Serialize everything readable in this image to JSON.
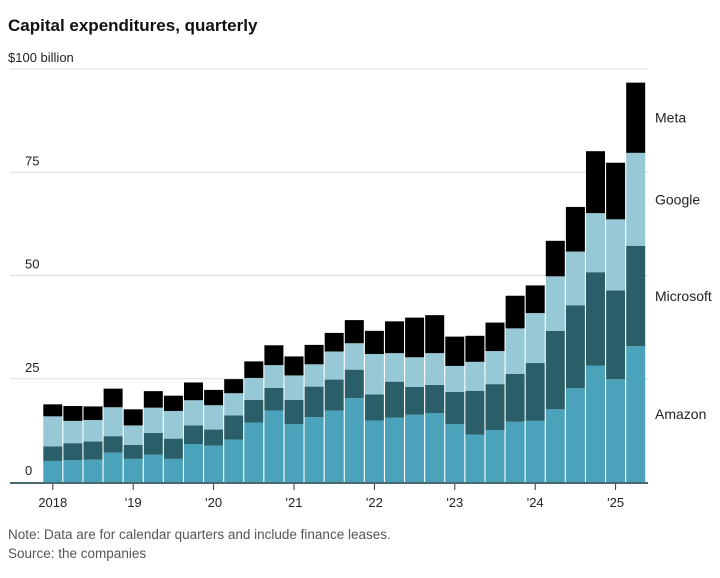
{
  "chart_data": {
    "type": "bar",
    "stacked": true,
    "title": "Capital expenditures, quarterly",
    "unit_label": "$100 billion",
    "ylim": [
      0,
      100
    ],
    "yticks": [
      0,
      25,
      50,
      75,
      100
    ],
    "ytick_labels": [
      "0",
      "25",
      "50",
      "75",
      "$100 billion"
    ],
    "grid": true,
    "legend_placement": "right, inline labels",
    "xtick_labels": [
      "2018",
      "'19",
      "'20",
      "'21",
      "'22",
      "'23",
      "'24",
      "'25"
    ],
    "categories": [
      "2018 Q1",
      "2018 Q2",
      "2018 Q3",
      "2018 Q4",
      "2019 Q1",
      "2019 Q2",
      "2019 Q3",
      "2019 Q4",
      "2020 Q1",
      "2020 Q2",
      "2020 Q3",
      "2020 Q4",
      "2021 Q1",
      "2021 Q2",
      "2021 Q3",
      "2021 Q4",
      "2022 Q1",
      "2022 Q2",
      "2022 Q3",
      "2022 Q4",
      "2023 Q1",
      "2023 Q2",
      "2023 Q3",
      "2023 Q4",
      "2024 Q1",
      "2024 Q2",
      "2024 Q3",
      "2024 Q4",
      "2025 Q1",
      "2025 Q2"
    ],
    "series": [
      {
        "name": "Amazon",
        "color": "#4aa3ba",
        "values": [
          5.1,
          5.3,
          5.4,
          7.1,
          5.6,
          6.6,
          5.6,
          9.2,
          8.8,
          10.3,
          14.4,
          17.3,
          14.0,
          15.7,
          17.3,
          20.3,
          14.9,
          15.6,
          16.3,
          16.7,
          14.0,
          11.5,
          12.6,
          14.6,
          14.8,
          17.6,
          22.7,
          28.2,
          24.9,
          32.9
        ]
      },
      {
        "name": "Microsoft",
        "color": "#2a5f69",
        "values": [
          3.5,
          4.1,
          4.4,
          4.0,
          3.4,
          5.3,
          4.9,
          4.5,
          3.9,
          5.8,
          5.5,
          5.5,
          5.9,
          7.4,
          7.5,
          6.9,
          6.3,
          8.7,
          6.7,
          6.8,
          7.8,
          10.6,
          11.1,
          11.6,
          14.0,
          19.0,
          20.1,
          22.6,
          21.5,
          24.3
        ]
      },
      {
        "name": "Google",
        "color": "#97c8d6",
        "values": [
          7.3,
          5.4,
          5.2,
          7.0,
          4.7,
          6.1,
          6.7,
          6.1,
          5.9,
          5.4,
          5.3,
          5.5,
          5.9,
          5.4,
          6.8,
          6.4,
          9.8,
          6.9,
          7.2,
          7.7,
          6.3,
          7.0,
          8.0,
          11.0,
          12.1,
          13.2,
          13.0,
          14.3,
          17.2,
          22.5
        ]
      },
      {
        "name": "Meta",
        "color": "#000000",
        "values": [
          2.9,
          3.6,
          3.3,
          4.5,
          3.9,
          4.0,
          3.7,
          4.3,
          3.7,
          3.4,
          4.0,
          4.8,
          4.6,
          4.7,
          4.5,
          5.6,
          5.6,
          7.7,
          9.6,
          9.2,
          7.1,
          6.3,
          6.9,
          7.9,
          6.7,
          8.6,
          10.8,
          15.0,
          13.7,
          17.0
        ]
      }
    ],
    "note": "Note: Data are for calendar quarters and include finance leases.",
    "source": "Source: the companies"
  }
}
